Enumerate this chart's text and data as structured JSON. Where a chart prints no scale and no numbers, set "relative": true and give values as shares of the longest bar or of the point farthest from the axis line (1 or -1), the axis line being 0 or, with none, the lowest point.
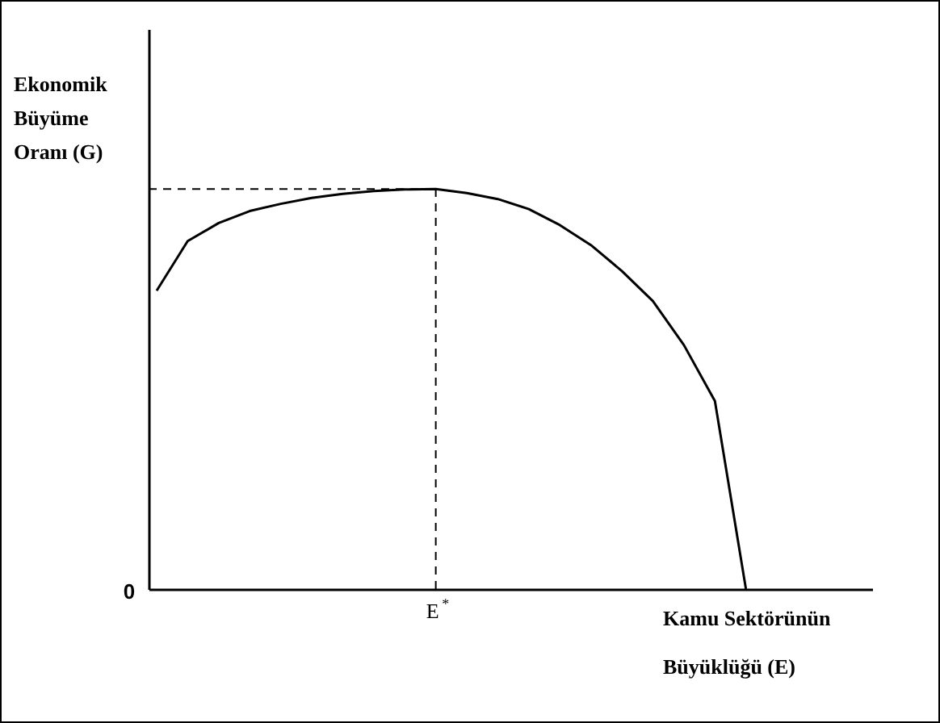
{
  "chart_data": {
    "type": "line",
    "relative": true,
    "xlabel": "Kamu Sektörünün\nBüyüklüğü (E)",
    "ylabel": "Ekonomik\nBüyüme\nOranı (G)",
    "categories": [
      null,
      null,
      null,
      null,
      null,
      null,
      null,
      null,
      null,
      null,
      null,
      null,
      null,
      null,
      null,
      null,
      null,
      null,
      null,
      null
    ],
    "series": [
      {
        "color": "#000000",
        "values": [
          0.746,
          0.87,
          0.915,
          0.945,
          0.963,
          0.978,
          0.988,
          0.995,
          0.999,
          1,
          0.99,
          0.975,
          0.95,
          0.91,
          0.86,
          0.795,
          0.72,
          0.61,
          0.47,
          0
        ]
      }
    ],
    "line_style": "solid",
    "ref_lines": [
      {
        "axis": "y",
        "line_style": "dashed",
        "color": "#000000"
      },
      {
        "axis": "x",
        "label": "E$^{*}$",
        "line_style": "dashed",
        "color": "#000000"
      }
    ],
    "annotations": [
      "0"
    ]
  }
}
